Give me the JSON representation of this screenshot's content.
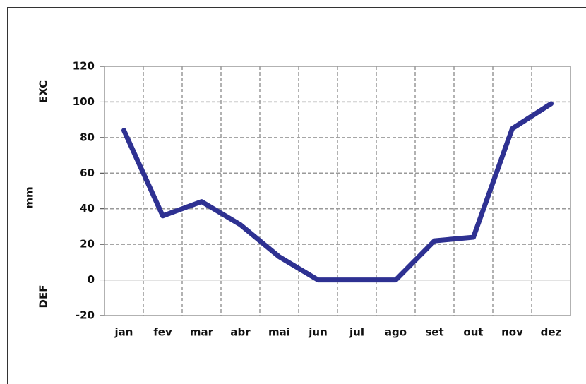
{
  "chart_data": {
    "type": "line",
    "y_label": "mm",
    "annotations": {
      "top": "EXC",
      "bottom": "DEF"
    },
    "categories": [
      "jan",
      "fev",
      "mar",
      "abr",
      "mai",
      "jun",
      "jul",
      "ago",
      "set",
      "out",
      "nov",
      "dez"
    ],
    "series": [
      {
        "color": "#2e3192",
        "values": [
          84,
          36,
          44,
          31,
          13,
          0,
          0,
          0,
          22,
          24,
          85,
          99
        ]
      }
    ],
    "ylim": [
      -20,
      120
    ],
    "yticks": [
      -20,
      0,
      20,
      40,
      60,
      80,
      100,
      120
    ],
    "grid": true
  }
}
